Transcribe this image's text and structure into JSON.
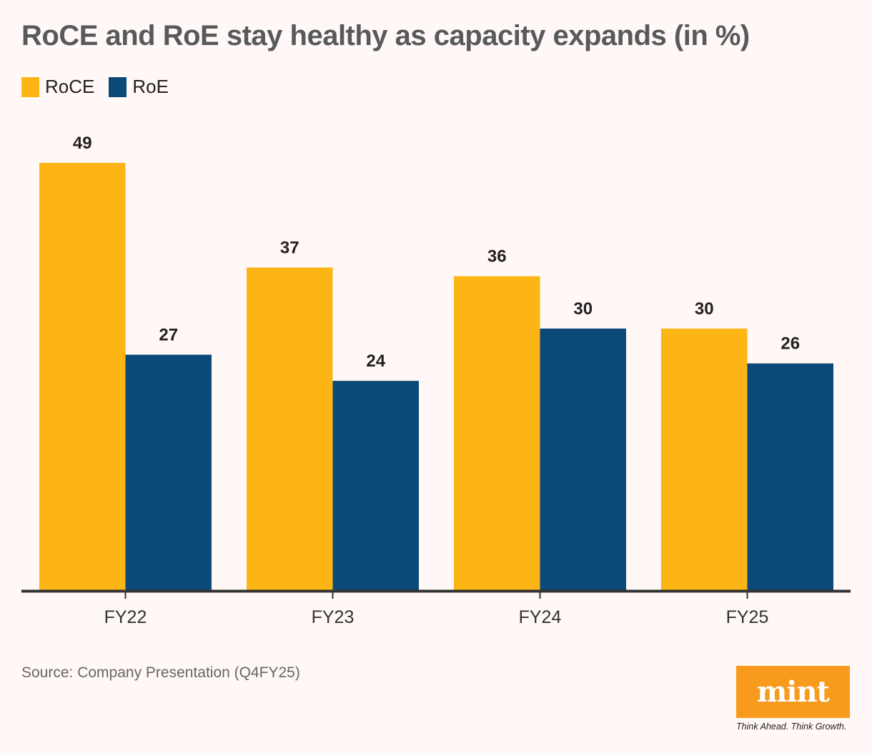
{
  "chart_data": {
    "type": "bar",
    "title": "RoCE and RoE stay healthy as capacity expands (in %)",
    "xlabel": "",
    "ylabel": "",
    "categories": [
      "FY22",
      "FY23",
      "FY24",
      "FY25"
    ],
    "series": [
      {
        "name": "RoCE",
        "color": "#fdb515",
        "values": [
          49,
          37,
          36,
          30
        ]
      },
      {
        "name": "RoE",
        "color": "#0b4a78",
        "values": [
          27,
          24,
          30,
          26
        ]
      }
    ],
    "ylim": [
      0,
      49
    ],
    "grid": false,
    "legend": "top-left",
    "data_labels": true
  },
  "source": "Source: Company Presentation (Q4FY25)",
  "branding": {
    "logo": "mint",
    "tagline": "Think Ahead. Think Growth."
  }
}
